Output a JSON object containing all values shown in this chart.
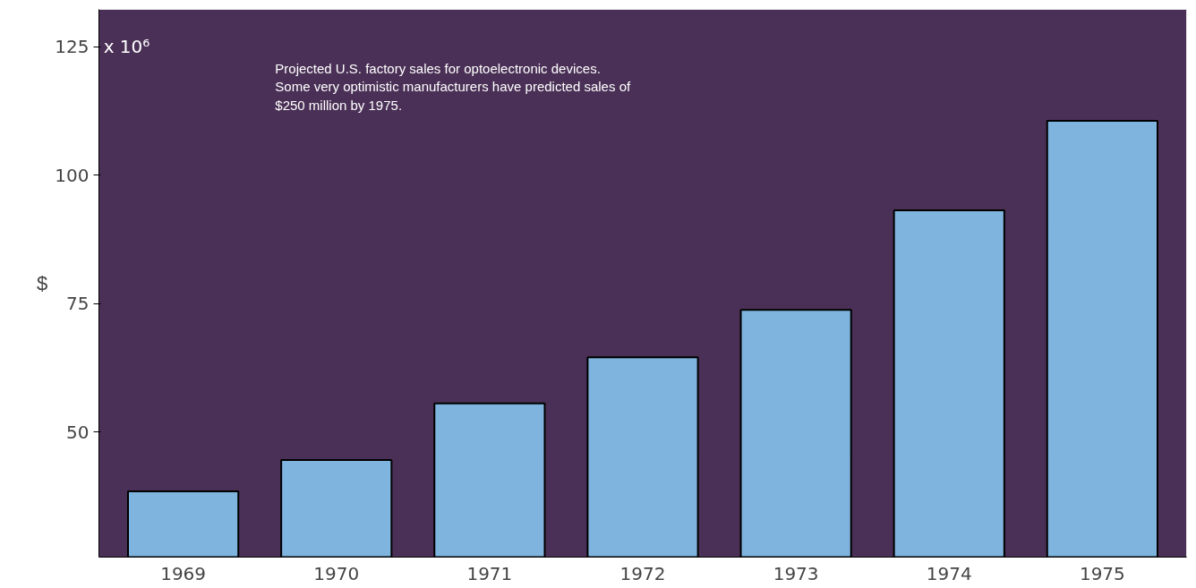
{
  "chart_data": {
    "type": "bar",
    "categories": [
      "1969",
      "1970",
      "1971",
      "1972",
      "1973",
      "1974",
      "1975"
    ],
    "values": [
      38.5,
      44.6,
      55.6,
      64.6,
      73.8,
      93.2,
      110.6
    ],
    "color": "#7fb4df",
    "ylabel": "$",
    "ylim": [
      25.7,
      132.3
    ],
    "yticks": [
      50,
      75,
      100,
      125
    ],
    "grid": false,
    "annotations": [
      "Projected U.S. factory sales for optoelectronic devices.\nSome very  optimistic manufacturers have predicted sales of\n$250 million  by 1975.",
      "x 10⁶"
    ]
  }
}
